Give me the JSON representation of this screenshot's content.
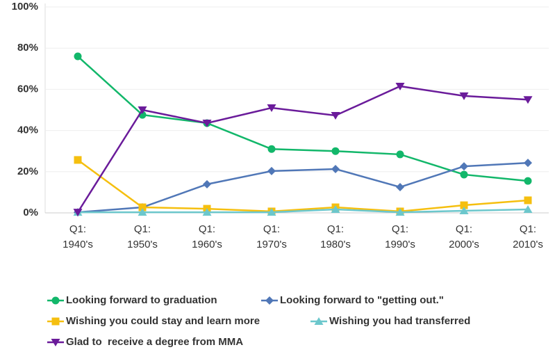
{
  "chart_data": {
    "type": "line",
    "categories": [
      "Q1: 1940's",
      "Q1: 1950's",
      "Q1: 1960's",
      "Q1: 1970's",
      "Q1: 1980's",
      "Q1: 1990's",
      "Q1: 2000's",
      "Q1: 2010's"
    ],
    "series": [
      {
        "name": "Looking forward to graduation",
        "color": "#12b76a",
        "marker": "circle",
        "values": [
          76,
          47.6,
          43.6,
          31,
          30,
          28.4,
          18.6,
          15.5
        ]
      },
      {
        "name": "Looking forward to \"getting out.\"",
        "color": "#5077b7",
        "marker": "diamond",
        "values": [
          0.3,
          2.7,
          13.9,
          20.3,
          21.3,
          12.5,
          22.6,
          24.3
        ]
      },
      {
        "name": "Wishing you could stay and learn more",
        "color": "#f5bf0f",
        "marker": "square",
        "values": [
          25.7,
          2.7,
          2,
          0.7,
          2.7,
          0.7,
          3.7,
          6.1
        ]
      },
      {
        "name": "Wishing you had transferred",
        "color": "#6cc7cc",
        "marker": "triangle-up",
        "values": [
          0.3,
          0.3,
          0.3,
          0.3,
          1.7,
          0.3,
          1,
          1.7
        ]
      },
      {
        "name": "Glad to  receive a degree from MMA",
        "color": "#6a1b9a",
        "marker": "triangle-down",
        "values": [
          0.3,
          50,
          43.6,
          51,
          47.3,
          61.5,
          56.8,
          55
        ]
      }
    ],
    "ylim": [
      0,
      100
    ],
    "yticks": [
      {
        "value": 0,
        "label": "0%"
      },
      {
        "value": 20,
        "label": "20%"
      },
      {
        "value": 40,
        "label": "40%"
      },
      {
        "value": 60,
        "label": "60%"
      },
      {
        "value": 80,
        "label": "80%"
      },
      {
        "value": 100,
        "label": "100%"
      }
    ],
    "grid": true
  }
}
